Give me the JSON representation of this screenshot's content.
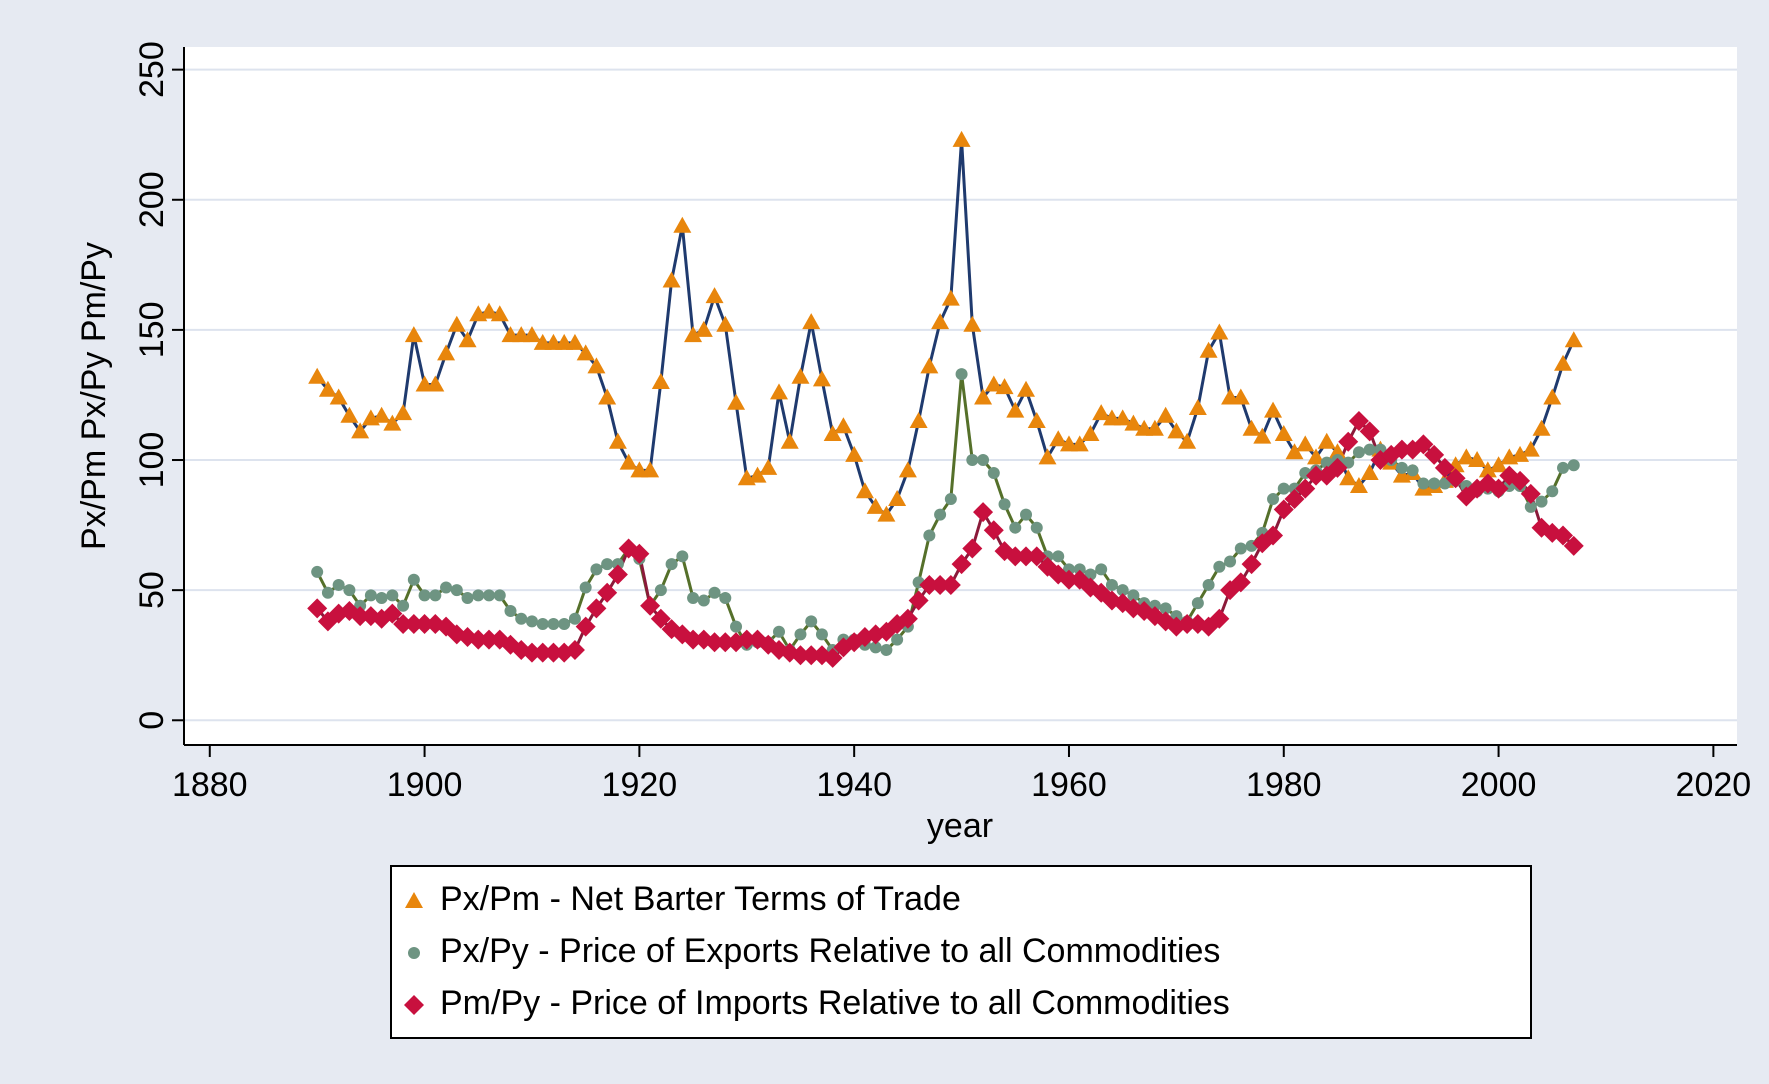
{
  "chart_data": {
    "type": "line",
    "x_label": "year",
    "y_label": "Px/Pm Px/Py Pm/Py",
    "x": [
      1890,
      1891,
      1892,
      1893,
      1894,
      1895,
      1896,
      1897,
      1898,
      1899,
      1900,
      1901,
      1902,
      1903,
      1904,
      1905,
      1906,
      1907,
      1908,
      1909,
      1910,
      1911,
      1912,
      1913,
      1914,
      1915,
      1916,
      1917,
      1918,
      1919,
      1920,
      1921,
      1922,
      1923,
      1924,
      1925,
      1926,
      1927,
      1928,
      1929,
      1930,
      1931,
      1932,
      1933,
      1934,
      1935,
      1936,
      1937,
      1938,
      1939,
      1940,
      1941,
      1942,
      1943,
      1944,
      1945,
      1946,
      1947,
      1948,
      1949,
      1950,
      1951,
      1952,
      1953,
      1954,
      1955,
      1956,
      1957,
      1958,
      1959,
      1960,
      1961,
      1962,
      1963,
      1964,
      1965,
      1966,
      1967,
      1968,
      1969,
      1970,
      1971,
      1972,
      1973,
      1974,
      1975,
      1976,
      1977,
      1978,
      1979,
      1980,
      1981,
      1982,
      1983,
      1984,
      1985,
      1986,
      1987,
      1988,
      1989,
      1990,
      1991,
      1992,
      1993,
      1994,
      1995,
      1996,
      1997,
      1998,
      1999,
      2000,
      2001,
      2002,
      2003,
      2004,
      2005,
      2006,
      2007
    ],
    "series": [
      {
        "name": "Px/Pm - Net Barter Terms of Trade",
        "color": "#e8860c",
        "line_color": "#1f3a6e",
        "marker": "triangle",
        "values": [
          132,
          127,
          124,
          117,
          111,
          116,
          117,
          114,
          118,
          148,
          129,
          129,
          141,
          152,
          146,
          156,
          157,
          156,
          148,
          148,
          148,
          145,
          145,
          145,
          145,
          141,
          136,
          124,
          107,
          99,
          96,
          96,
          130,
          169,
          190,
          148,
          150,
          163,
          152,
          122,
          93,
          94,
          97,
          126,
          107,
          132,
          153,
          131,
          110,
          113,
          102,
          88,
          82,
          79,
          85,
          96,
          115,
          136,
          153,
          162,
          223,
          152,
          124,
          129,
          128,
          119,
          127,
          115,
          101,
          108,
          106,
          106,
          110,
          118,
          116,
          116,
          114,
          112,
          112,
          117,
          111,
          107,
          120,
          142,
          149,
          124,
          124,
          112,
          109,
          119,
          110,
          103,
          106,
          101,
          107,
          103,
          93,
          90,
          95,
          104,
          99,
          94,
          95,
          89,
          90,
          92,
          98,
          101,
          100,
          96,
          98,
          101,
          102,
          104,
          112,
          124,
          137,
          146
        ]
      },
      {
        "name": "Px/Py - Price of Exports Relative to all Commodities",
        "color": "#6e9482",
        "line_color": "#55702a",
        "marker": "circle",
        "values": [
          57,
          49,
          52,
          50,
          44,
          48,
          47,
          48,
          44,
          54,
          48,
          48,
          51,
          50,
          47,
          48,
          48,
          48,
          42,
          39,
          38,
          37,
          37,
          37,
          39,
          51,
          58,
          60,
          60,
          66,
          62,
          44,
          50,
          60,
          63,
          47,
          46,
          49,
          47,
          36,
          29,
          30,
          30,
          34,
          27,
          33,
          38,
          33,
          27,
          31,
          31,
          29,
          28,
          27,
          31,
          36,
          53,
          71,
          79,
          85,
          133,
          100,
          100,
          95,
          83,
          74,
          79,
          74,
          63,
          63,
          58,
          58,
          56,
          58,
          52,
          50,
          48,
          45,
          44,
          43,
          40,
          38,
          45,
          52,
          59,
          61,
          66,
          67,
          72,
          85,
          89,
          89,
          95,
          96,
          99,
          100,
          99,
          103,
          104,
          104,
          100,
          97,
          96,
          91,
          91,
          91,
          92,
          90,
          88,
          89,
          88,
          90,
          90,
          82,
          84,
          88,
          97,
          98
        ]
      },
      {
        "name": "Pm/Py - Price of Imports Relative to all Commodities",
        "color": "#c8103e",
        "line_color": "#8b1a3a",
        "marker": "diamond",
        "values": [
          43,
          38,
          41,
          42,
          40,
          40,
          39,
          41,
          37,
          37,
          37,
          37,
          36,
          33,
          32,
          31,
          31,
          31,
          29,
          27,
          26,
          26,
          26,
          26,
          27,
          36,
          43,
          49,
          56,
          66,
          64,
          44,
          39,
          35,
          33,
          31,
          31,
          30,
          30,
          30,
          31,
          31,
          29,
          27,
          26,
          25,
          25,
          25,
          24,
          28,
          30,
          32,
          33,
          34,
          37,
          39,
          46,
          52,
          52,
          52,
          60,
          66,
          80,
          73,
          65,
          63,
          63,
          63,
          59,
          56,
          54,
          54,
          51,
          49,
          46,
          45,
          43,
          42,
          40,
          38,
          36,
          37,
          37,
          36,
          39,
          50,
          53,
          60,
          68,
          71,
          81,
          85,
          89,
          94,
          94,
          97,
          107,
          115,
          111,
          100,
          102,
          104,
          104,
          106,
          102,
          97,
          93,
          86,
          89,
          91,
          89,
          94,
          92,
          87,
          74,
          72,
          71,
          67
        ]
      }
    ],
    "xlim": [
      1877.6,
      2022.2
    ],
    "xticks": [
      1880,
      1900,
      1920,
      1940,
      1960,
      1980,
      2000,
      2020
    ],
    "ylim": [
      -9.5,
      258.7
    ],
    "yticks": [
      0,
      50,
      100,
      150,
      200,
      250
    ],
    "grid": true,
    "legend": "bottom"
  }
}
